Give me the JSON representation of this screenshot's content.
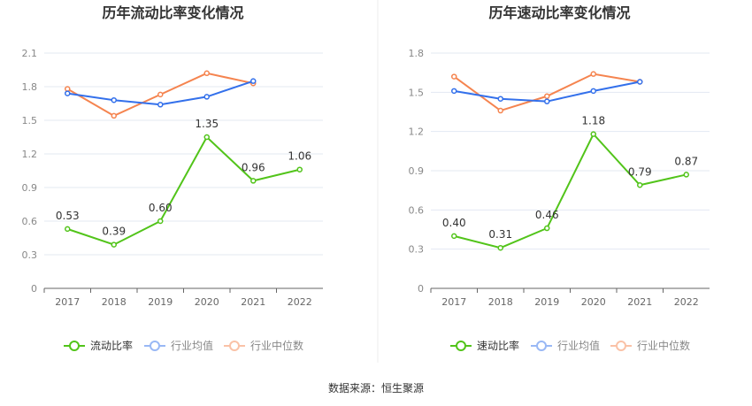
{
  "footer": "数据来源：恒生聚源",
  "chart_data": [
    {
      "type": "line",
      "title": "历年流动比率变化情况",
      "categories": [
        "2017",
        "2018",
        "2019",
        "2020",
        "2021",
        "2022"
      ],
      "ylim": [
        0,
        2.1
      ],
      "yticks": [
        "0",
        "0.3",
        "0.6",
        "0.9",
        "1.2",
        "1.5",
        "1.8",
        "2.1"
      ],
      "grid": true,
      "legend": "bottom",
      "series": [
        {
          "name": "流动比率",
          "color": "#52c41a",
          "values": [
            0.53,
            0.39,
            0.6,
            1.35,
            0.96,
            1.06
          ],
          "labels": [
            "0.53",
            "0.39",
            "0.60",
            "1.35",
            "0.96",
            "1.06"
          ]
        },
        {
          "name": "行业均值",
          "color": "#3370eb",
          "values": [
            1.74,
            1.68,
            1.64,
            1.71,
            1.85,
            null
          ]
        },
        {
          "name": "行业中位数",
          "color": "#f5844f",
          "values": [
            1.78,
            1.54,
            1.73,
            1.92,
            1.83,
            null
          ]
        }
      ]
    },
    {
      "type": "line",
      "title": "历年速动比率变化情况",
      "categories": [
        "2017",
        "2018",
        "2019",
        "2020",
        "2021",
        "2022"
      ],
      "ylim": [
        0,
        1.8
      ],
      "yticks": [
        "0",
        "0.3",
        "0.6",
        "0.9",
        "1.2",
        "1.5",
        "1.8"
      ],
      "grid": true,
      "legend": "bottom",
      "series": [
        {
          "name": "速动比率",
          "color": "#52c41a",
          "values": [
            0.4,
            0.31,
            0.46,
            1.18,
            0.79,
            0.87
          ],
          "labels": [
            "0.40",
            "0.31",
            "0.46",
            "1.18",
            "0.79",
            "0.87"
          ]
        },
        {
          "name": "行业均值",
          "color": "#3370eb",
          "values": [
            1.51,
            1.45,
            1.43,
            1.51,
            1.58,
            null
          ]
        },
        {
          "name": "行业中位数",
          "color": "#f5844f",
          "values": [
            1.62,
            1.36,
            1.47,
            1.64,
            1.58,
            null
          ]
        }
      ]
    }
  ]
}
